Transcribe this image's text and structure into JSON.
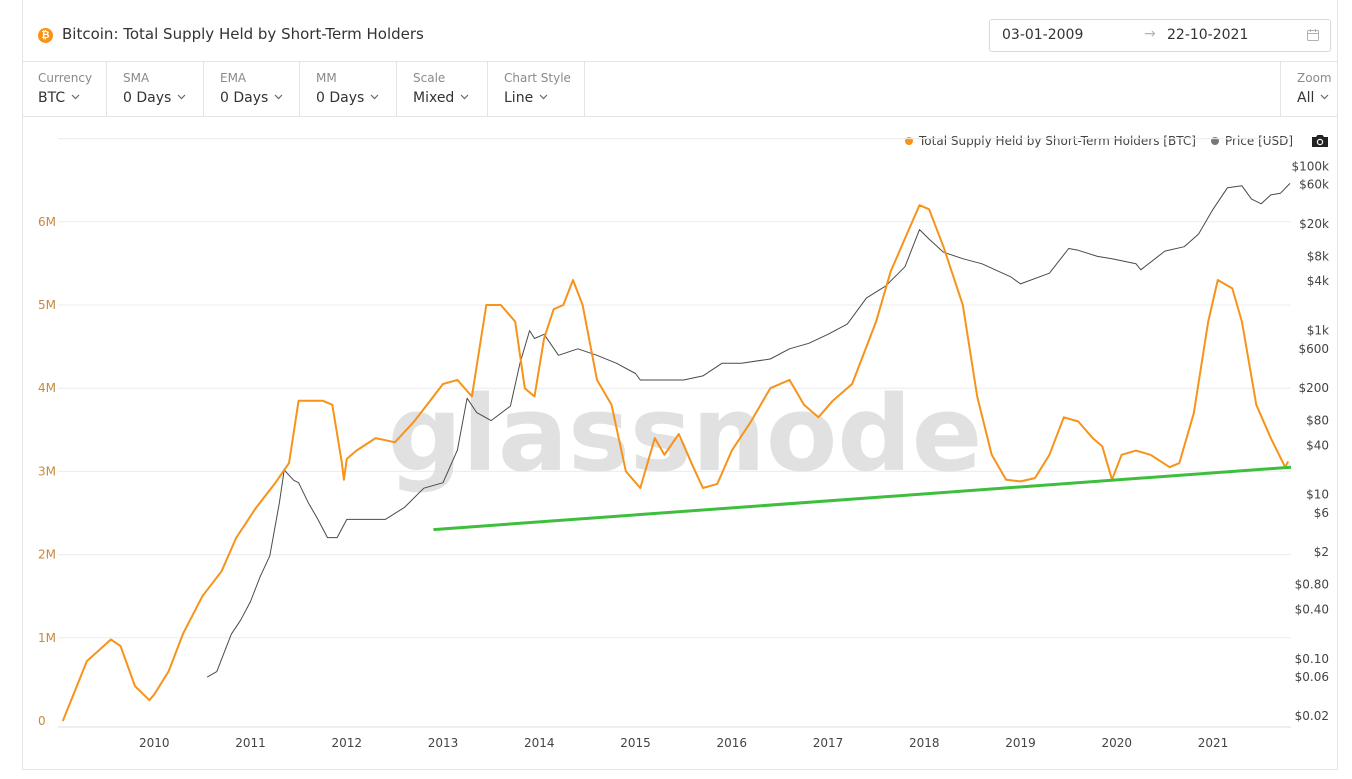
{
  "header": {
    "coin_symbol": "₿",
    "title": "Bitcoin: Total Supply Held by Short-Term Holders",
    "date_start": "03-01-2009",
    "date_arrow": "→",
    "date_end": "22-10-2021"
  },
  "toolbar": {
    "currency": {
      "label": "Currency",
      "value": "BTC"
    },
    "sma": {
      "label": "SMA",
      "value": "0 Days"
    },
    "ema": {
      "label": "EMA",
      "value": "0 Days"
    },
    "mm": {
      "label": "MM",
      "value": "0 Days"
    },
    "scale": {
      "label": "Scale",
      "value": "Mixed"
    },
    "chart_style": {
      "label": "Chart Style",
      "value": "Line"
    },
    "zoom": {
      "label": "Zoom",
      "value": "All"
    }
  },
  "legend": {
    "supply": "Total Supply Held by Short-Term Holders [BTC]",
    "price": "Price [USD]"
  },
  "colors": {
    "supply": "#f7931a",
    "price": "#4a4a4a",
    "trendline": "#3dbf3d",
    "grid": "#ececec",
    "watermark": "#dcdcdc"
  },
  "chart_data": {
    "type": "line",
    "watermark": "glassnode",
    "x_ticks": [
      "2010",
      "2011",
      "2012",
      "2013",
      "2014",
      "2015",
      "2016",
      "2017",
      "2018",
      "2019",
      "2020",
      "2021"
    ],
    "x_range": [
      2009.0,
      2021.81
    ],
    "left_axis": {
      "ticks": [
        "0",
        "1M",
        "2M",
        "3M",
        "4M",
        "5M",
        "6M"
      ],
      "values": [
        0,
        1000000,
        2000000,
        3000000,
        4000000,
        5000000,
        6000000
      ],
      "range": [
        0,
        7000000
      ]
    },
    "right_axis": {
      "scale": "log",
      "range": [
        0.018,
        110000
      ],
      "ticks": [
        "$100k",
        "$60k",
        "$20k",
        "$8k",
        "$4k",
        "$1k",
        "$600",
        "$200",
        "$80",
        "$40",
        "$10",
        "$6",
        "$2",
        "$0.80",
        "$0.40",
        "$0.10",
        "$0.06",
        "$0.02"
      ],
      "values": [
        100000,
        60000,
        20000,
        8000,
        4000,
        1000,
        600,
        200,
        80,
        40,
        10,
        6,
        2,
        0.8,
        0.4,
        0.1,
        0.06,
        0.02
      ]
    },
    "series": [
      {
        "name": "Total Supply Held by Short-Term Holders [BTC]",
        "axis": "left",
        "x": [
          2009.05,
          2009.3,
          2009.55,
          2009.65,
          2009.8,
          2009.95,
          2010.0,
          2010.15,
          2010.3,
          2010.5,
          2010.7,
          2010.85,
          2011.05,
          2011.25,
          2011.4,
          2011.5,
          2011.6,
          2011.75,
          2011.85,
          2011.95,
          2011.97,
          2012.0,
          2012.1,
          2012.3,
          2012.5,
          2012.7,
          2012.9,
          2013.0,
          2013.15,
          2013.3,
          2013.45,
          2013.6,
          2013.75,
          2013.85,
          2013.95,
          2014.05,
          2014.15,
          2014.25,
          2014.35,
          2014.45,
          2014.6,
          2014.75,
          2014.9,
          2015.05,
          2015.2,
          2015.3,
          2015.45,
          2015.6,
          2015.7,
          2015.85,
          2016.0,
          2016.2,
          2016.4,
          2016.6,
          2016.75,
          2016.9,
          2017.05,
          2017.25,
          2017.5,
          2017.65,
          2017.8,
          2017.95,
          2018.05,
          2018.2,
          2018.4,
          2018.55,
          2018.7,
          2018.85,
          2019.0,
          2019.15,
          2019.3,
          2019.45,
          2019.6,
          2019.75,
          2019.85,
          2019.95,
          2020.05,
          2020.2,
          2020.35,
          2020.55,
          2020.65,
          2020.8,
          2020.95,
          2021.05,
          2021.2,
          2021.3,
          2021.45,
          2021.6,
          2021.75,
          2021.78
        ],
        "values": [
          0,
          720000,
          980000,
          900000,
          420000,
          250000,
          320000,
          600000,
          1050000,
          1500000,
          1800000,
          2200000,
          2550000,
          2850000,
          3100000,
          3850000,
          3850000,
          3850000,
          3800000,
          3100000,
          2900000,
          3150000,
          3250000,
          3400000,
          3350000,
          3600000,
          3900000,
          4050000,
          4100000,
          3900000,
          5000000,
          5000000,
          4800000,
          4000000,
          3900000,
          4600000,
          4950000,
          5000000,
          5300000,
          5000000,
          4100000,
          3800000,
          3000000,
          2800000,
          3400000,
          3200000,
          3450000,
          3050000,
          2800000,
          2850000,
          3250000,
          3600000,
          4000000,
          4100000,
          3800000,
          3650000,
          3850000,
          4050000,
          4800000,
          5400000,
          5800000,
          6200000,
          6150000,
          5700000,
          5000000,
          3900000,
          3200000,
          2900000,
          2880000,
          2920000,
          3200000,
          3650000,
          3600000,
          3400000,
          3300000,
          2900000,
          3200000,
          3250000,
          3200000,
          3050000,
          3100000,
          3700000,
          4800000,
          5300000,
          5200000,
          4800000,
          3800000,
          3400000,
          3050000,
          3120000
        ]
      },
      {
        "name": "Price [USD]",
        "axis": "right",
        "x": [
          2010.55,
          2010.65,
          2010.8,
          2010.9,
          2011.0,
          2011.1,
          2011.2,
          2011.3,
          2011.35,
          2011.45,
          2011.5,
          2011.6,
          2011.7,
          2011.8,
          2011.9,
          2012.0,
          2012.2,
          2012.4,
          2012.6,
          2012.8,
          2013.0,
          2013.15,
          2013.25,
          2013.35,
          2013.5,
          2013.7,
          2013.8,
          2013.9,
          2013.95,
          2014.05,
          2014.2,
          2014.4,
          2014.6,
          2014.8,
          2015.0,
          2015.05,
          2015.3,
          2015.5,
          2015.7,
          2015.9,
          2016.1,
          2016.4,
          2016.6,
          2016.8,
          2017.0,
          2017.2,
          2017.4,
          2017.6,
          2017.8,
          2017.95,
          2018.05,
          2018.2,
          2018.4,
          2018.6,
          2018.9,
          2019.0,
          2019.3,
          2019.5,
          2019.6,
          2019.8,
          2019.95,
          2020.2,
          2020.25,
          2020.5,
          2020.7,
          2020.85,
          2021.0,
          2021.15,
          2021.3,
          2021.4,
          2021.5,
          2021.6,
          2021.7,
          2021.8
        ],
        "values": [
          0.06,
          0.07,
          0.2,
          0.3,
          0.5,
          1,
          1.8,
          8,
          20,
          15,
          14,
          8,
          5,
          3,
          3,
          5,
          5,
          5,
          7,
          12,
          14,
          35,
          150,
          100,
          80,
          120,
          400,
          1000,
          800,
          900,
          500,
          600,
          500,
          400,
          300,
          250,
          250,
          250,
          280,
          400,
          400,
          450,
          600,
          700,
          900,
          1200,
          2500,
          3500,
          6000,
          17000,
          13000,
          9000,
          7500,
          6500,
          4500,
          3700,
          5000,
          10000,
          9500,
          8000,
          7500,
          6500,
          5500,
          9300,
          10500,
          15000,
          30000,
          55000,
          58000,
          40000,
          35000,
          45000,
          47000,
          62000
        ]
      },
      {
        "name": "trendline",
        "axis": "left",
        "x": [
          2012.9,
          2021.81
        ],
        "values": [
          2300000,
          3050000
        ]
      }
    ]
  }
}
